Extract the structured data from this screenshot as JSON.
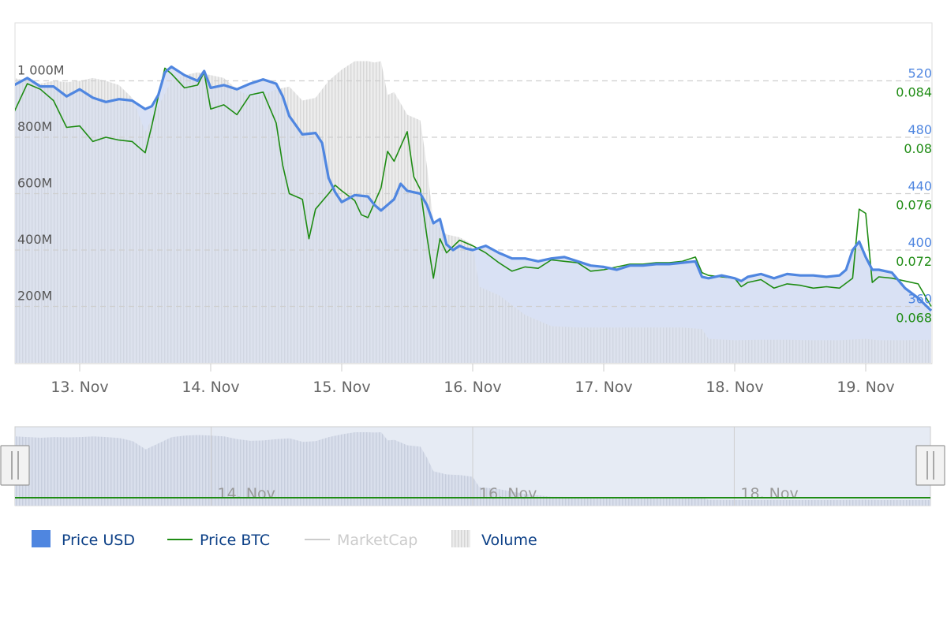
{
  "colors": {
    "price_usd": "#4f86e0",
    "price_usd_fill": "#e3eaf7",
    "price_btc": "#1f8c14",
    "volume": "#d9d9d9",
    "marketcap_hidden": "#cccccc",
    "grid": "#cfcfcf",
    "navigator_fill": "#e6ebf4",
    "handle": "#f2f2f2",
    "legend_text": "#0b3f86"
  },
  "chart_data": {
    "type": "line",
    "x_labels": [
      "13. Nov",
      "14. Nov",
      "15. Nov",
      "16. Nov",
      "17. Nov",
      "18. Nov",
      "19. Nov"
    ],
    "y_left_ticks": [
      "200M",
      "400M",
      "600M",
      "800M",
      "1 000M"
    ],
    "y_left_range": [
      0,
      1200000000
    ],
    "y_usd_ticks": [
      "360",
      "400",
      "440",
      "480",
      "520"
    ],
    "y_usd_range": [
      320,
      560
    ],
    "y_btc_ticks": [
      "0.068",
      "0.072",
      "0.076",
      "0.08",
      "0.084"
    ],
    "y_btc_range": [
      0.064,
      0.088
    ],
    "x_range_days": [
      12.5,
      19.5
    ],
    "series": [
      {
        "name": "Price USD",
        "axis": "usd",
        "points": [
          [
            12.5,
            517
          ],
          [
            12.6,
            522
          ],
          [
            12.7,
            516
          ],
          [
            12.8,
            516
          ],
          [
            12.9,
            509
          ],
          [
            13.0,
            514
          ],
          [
            13.1,
            508
          ],
          [
            13.2,
            505
          ],
          [
            13.3,
            507
          ],
          [
            13.4,
            506
          ],
          [
            13.5,
            500
          ],
          [
            13.55,
            502
          ],
          [
            13.6,
            510
          ],
          [
            13.65,
            526
          ],
          [
            13.7,
            530
          ],
          [
            13.8,
            524
          ],
          [
            13.9,
            520
          ],
          [
            13.95,
            527
          ],
          [
            14.0,
            515
          ],
          [
            14.1,
            517
          ],
          [
            14.2,
            514
          ],
          [
            14.3,
            518
          ],
          [
            14.4,
            521
          ],
          [
            14.5,
            518
          ],
          [
            14.55,
            509
          ],
          [
            14.6,
            495
          ],
          [
            14.7,
            482
          ],
          [
            14.8,
            483
          ],
          [
            14.85,
            476
          ],
          [
            14.9,
            451
          ],
          [
            14.95,
            441
          ],
          [
            15.0,
            434
          ],
          [
            15.1,
            439
          ],
          [
            15.2,
            438
          ],
          [
            15.25,
            432
          ],
          [
            15.3,
            428
          ],
          [
            15.4,
            436
          ],
          [
            15.45,
            447
          ],
          [
            15.5,
            442
          ],
          [
            15.6,
            440
          ],
          [
            15.65,
            432
          ],
          [
            15.7,
            419
          ],
          [
            15.75,
            422
          ],
          [
            15.8,
            404
          ],
          [
            15.85,
            400
          ],
          [
            15.9,
            403
          ],
          [
            15.95,
            401
          ],
          [
            16.0,
            400
          ],
          [
            16.1,
            403
          ],
          [
            16.2,
            398
          ],
          [
            16.3,
            394
          ],
          [
            16.4,
            394
          ],
          [
            16.5,
            392
          ],
          [
            16.6,
            394
          ],
          [
            16.7,
            395
          ],
          [
            16.8,
            392
          ],
          [
            16.9,
            389
          ],
          [
            17.0,
            388
          ],
          [
            17.1,
            386
          ],
          [
            17.2,
            389
          ],
          [
            17.3,
            389
          ],
          [
            17.4,
            390
          ],
          [
            17.5,
            390
          ],
          [
            17.6,
            391
          ],
          [
            17.7,
            392
          ],
          [
            17.75,
            381
          ],
          [
            17.8,
            380
          ],
          [
            17.9,
            382
          ],
          [
            18.0,
            380
          ],
          [
            18.05,
            378
          ],
          [
            18.1,
            381
          ],
          [
            18.2,
            383
          ],
          [
            18.3,
            380
          ],
          [
            18.4,
            383
          ],
          [
            18.5,
            382
          ],
          [
            18.6,
            382
          ],
          [
            18.7,
            381
          ],
          [
            18.8,
            382
          ],
          [
            18.85,
            386
          ],
          [
            18.9,
            400
          ],
          [
            18.95,
            406
          ],
          [
            19.0,
            395
          ],
          [
            19.05,
            386
          ],
          [
            19.1,
            386
          ],
          [
            19.2,
            384
          ],
          [
            19.3,
            373
          ],
          [
            19.4,
            366
          ],
          [
            19.5,
            357
          ]
        ]
      },
      {
        "name": "Price BTC",
        "axis": "btc",
        "points": [
          [
            12.5,
            0.0818
          ],
          [
            12.6,
            0.0838
          ],
          [
            12.7,
            0.0834
          ],
          [
            12.8,
            0.0826
          ],
          [
            12.9,
            0.0807
          ],
          [
            13.0,
            0.0808
          ],
          [
            13.1,
            0.0797
          ],
          [
            13.2,
            0.08
          ],
          [
            13.3,
            0.0798
          ],
          [
            13.4,
            0.0797
          ],
          [
            13.5,
            0.0789
          ],
          [
            13.55,
            0.0808
          ],
          [
            13.6,
            0.0829
          ],
          [
            13.65,
            0.0849
          ],
          [
            13.7,
            0.0845
          ],
          [
            13.8,
            0.0835
          ],
          [
            13.9,
            0.0837
          ],
          [
            13.95,
            0.0846
          ],
          [
            14.0,
            0.082
          ],
          [
            14.1,
            0.0823
          ],
          [
            14.2,
            0.0816
          ],
          [
            14.3,
            0.083
          ],
          [
            14.4,
            0.0832
          ],
          [
            14.5,
            0.081
          ],
          [
            14.55,
            0.078
          ],
          [
            14.6,
            0.076
          ],
          [
            14.7,
            0.0756
          ],
          [
            14.75,
            0.0728
          ],
          [
            14.8,
            0.0749
          ],
          [
            14.9,
            0.076
          ],
          [
            14.95,
            0.0766
          ],
          [
            15.0,
            0.0762
          ],
          [
            15.1,
            0.0755
          ],
          [
            15.15,
            0.0745
          ],
          [
            15.2,
            0.0743
          ],
          [
            15.3,
            0.0764
          ],
          [
            15.35,
            0.079
          ],
          [
            15.4,
            0.0783
          ],
          [
            15.5,
            0.0804
          ],
          [
            15.55,
            0.0772
          ],
          [
            15.6,
            0.0763
          ],
          [
            15.65,
            0.073
          ],
          [
            15.7,
            0.07
          ],
          [
            15.75,
            0.0728
          ],
          [
            15.8,
            0.0718
          ],
          [
            15.9,
            0.0727
          ],
          [
            16.0,
            0.0723
          ],
          [
            16.1,
            0.0718
          ],
          [
            16.2,
            0.0711
          ],
          [
            16.3,
            0.0705
          ],
          [
            16.4,
            0.0708
          ],
          [
            16.5,
            0.0707
          ],
          [
            16.6,
            0.0713
          ],
          [
            16.7,
            0.0712
          ],
          [
            16.8,
            0.0711
          ],
          [
            16.9,
            0.0705
          ],
          [
            17.0,
            0.0706
          ],
          [
            17.1,
            0.0708
          ],
          [
            17.2,
            0.071
          ],
          [
            17.3,
            0.071
          ],
          [
            17.4,
            0.0711
          ],
          [
            17.5,
            0.0711
          ],
          [
            17.6,
            0.0712
          ],
          [
            17.7,
            0.0715
          ],
          [
            17.75,
            0.0704
          ],
          [
            17.8,
            0.0702
          ],
          [
            17.9,
            0.0701
          ],
          [
            18.0,
            0.07
          ],
          [
            18.05,
            0.0694
          ],
          [
            18.1,
            0.0697
          ],
          [
            18.2,
            0.0699
          ],
          [
            18.3,
            0.0693
          ],
          [
            18.4,
            0.0696
          ],
          [
            18.5,
            0.0695
          ],
          [
            18.6,
            0.0693
          ],
          [
            18.7,
            0.0694
          ],
          [
            18.8,
            0.0693
          ],
          [
            18.9,
            0.07
          ],
          [
            18.95,
            0.0749
          ],
          [
            19.0,
            0.0746
          ],
          [
            19.05,
            0.0697
          ],
          [
            19.1,
            0.0701
          ],
          [
            19.2,
            0.07
          ],
          [
            19.3,
            0.0698
          ],
          [
            19.4,
            0.0696
          ],
          [
            19.5,
            0.068
          ]
        ]
      },
      {
        "name": "Volume",
        "axis": "left",
        "points": [
          [
            12.5,
            1010000000
          ],
          [
            12.6,
            1000000000
          ],
          [
            12.7,
            990000000
          ],
          [
            12.8,
            1000000000
          ],
          [
            12.9,
            995000000
          ],
          [
            13.0,
            1000000000
          ],
          [
            13.1,
            1010000000
          ],
          [
            13.2,
            1000000000
          ],
          [
            13.3,
            985000000
          ],
          [
            13.4,
            940000000
          ],
          [
            13.5,
            820000000
          ],
          [
            13.6,
            910000000
          ],
          [
            13.7,
            1000000000
          ],
          [
            13.8,
            1020000000
          ],
          [
            13.9,
            1030000000
          ],
          [
            14.0,
            1020000000
          ],
          [
            14.1,
            1010000000
          ],
          [
            14.2,
            970000000
          ],
          [
            14.3,
            945000000
          ],
          [
            14.4,
            950000000
          ],
          [
            14.5,
            970000000
          ],
          [
            14.6,
            980000000
          ],
          [
            14.7,
            930000000
          ],
          [
            14.8,
            940000000
          ],
          [
            14.9,
            1000000000
          ],
          [
            15.0,
            1040000000
          ],
          [
            15.1,
            1070000000
          ],
          [
            15.2,
            1070000000
          ],
          [
            15.25,
            1065000000
          ],
          [
            15.3,
            1070000000
          ],
          [
            15.35,
            950000000
          ],
          [
            15.4,
            960000000
          ],
          [
            15.5,
            880000000
          ],
          [
            15.6,
            860000000
          ],
          [
            15.65,
            700000000
          ],
          [
            15.7,
            500000000
          ],
          [
            15.8,
            455000000
          ],
          [
            15.9,
            445000000
          ],
          [
            16.0,
            420000000
          ],
          [
            16.05,
            270000000
          ],
          [
            16.2,
            240000000
          ],
          [
            16.4,
            170000000
          ],
          [
            16.6,
            130000000
          ],
          [
            16.8,
            125000000
          ],
          [
            17.0,
            125000000
          ],
          [
            17.2,
            125000000
          ],
          [
            17.4,
            125000000
          ],
          [
            17.6,
            125000000
          ],
          [
            17.75,
            120000000
          ],
          [
            17.8,
            85000000
          ],
          [
            18.0,
            80000000
          ],
          [
            18.2,
            82000000
          ],
          [
            18.4,
            82000000
          ],
          [
            18.6,
            80000000
          ],
          [
            18.8,
            80000000
          ],
          [
            19.0,
            85000000
          ],
          [
            19.1,
            80000000
          ],
          [
            19.3,
            80000000
          ],
          [
            19.5,
            82000000
          ]
        ]
      }
    ],
    "legend": [
      {
        "label": "Price USD",
        "symbol": "square",
        "color": "#4f86e0",
        "active": true
      },
      {
        "label": "Price BTC",
        "symbol": "line",
        "color": "#1f8c14",
        "active": true
      },
      {
        "label": "MarketCap",
        "symbol": "line",
        "color": "#cccccc",
        "active": false
      },
      {
        "label": "Volume",
        "symbol": "hatched-square",
        "color": "#d9d9d9",
        "active": true
      }
    ],
    "navigator_labels": [
      "14. Nov",
      "16. Nov",
      "18. Nov"
    ],
    "grid": true,
    "legend_position": "bottom-left"
  }
}
